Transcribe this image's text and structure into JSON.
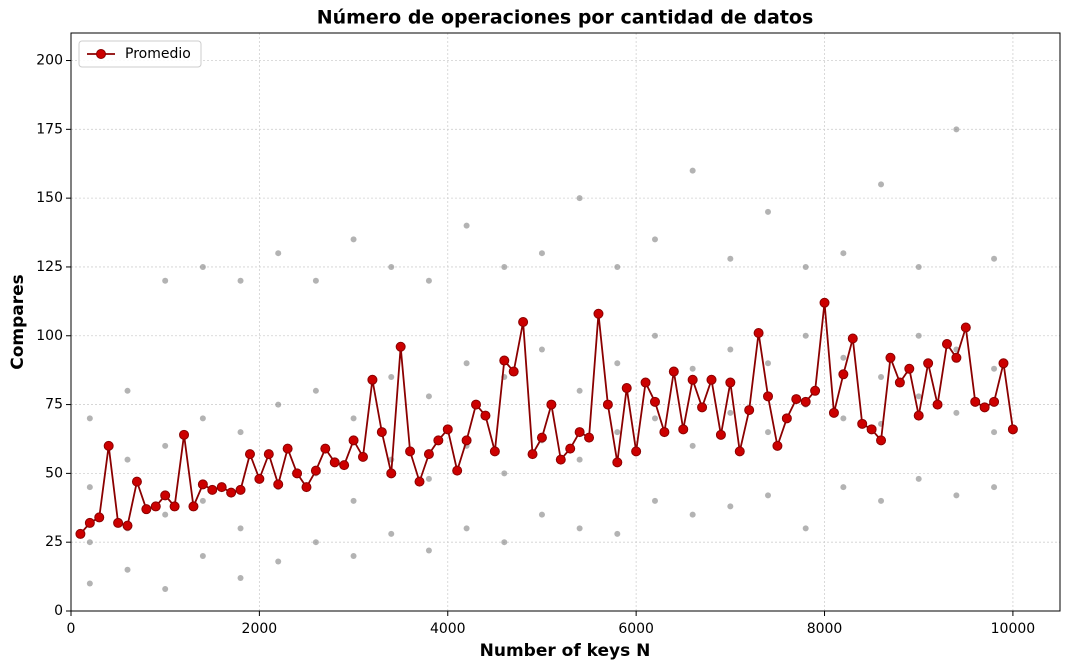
{
  "chart_data": {
    "type": "line",
    "title": "Número de operaciones por cantidad de datos",
    "x_label": "Number of keys N",
    "y_label": "Compares",
    "xlim": [
      0,
      10500
    ],
    "ylim": [
      0,
      210
    ],
    "xticks": [
      0,
      2000,
      4000,
      6000,
      8000,
      10000
    ],
    "yticks": [
      0,
      25,
      50,
      75,
      100,
      125,
      150,
      175,
      200
    ],
    "grid": true,
    "legend": "upper left",
    "series": [
      {
        "type": "scatter",
        "color": "#808080",
        "x": [
          200,
          200,
          200,
          200,
          600,
          600,
          600,
          600,
          1000,
          1000,
          1000,
          1000,
          1400,
          1400,
          1400,
          1400,
          1800,
          1800,
          1800,
          1800,
          2200,
          2200,
          2200,
          2200,
          2600,
          2600,
          2600,
          2600,
          3000,
          3000,
          3000,
          3000,
          3400,
          3400,
          3400,
          3400,
          3800,
          3800,
          3800,
          3800,
          4200,
          4200,
          4200,
          4200,
          4600,
          4600,
          4600,
          4600,
          5000,
          5000,
          5000,
          5000,
          5400,
          5400,
          5400,
          5400,
          5800,
          5800,
          5800,
          5800,
          6200,
          6200,
          6200,
          6200,
          6600,
          6600,
          6600,
          6600,
          7000,
          7000,
          7000,
          7000,
          7400,
          7400,
          7400,
          7400,
          7800,
          7800,
          7800,
          7800,
          8200,
          8200,
          8200,
          8200,
          8600,
          8600,
          8600,
          8600,
          9000,
          9000,
          9000,
          9000,
          9400,
          9400,
          9400,
          9400,
          9800,
          9800,
          9800,
          9800
        ],
        "values": [
          10,
          25,
          45,
          70,
          15,
          30,
          55,
          80,
          8,
          35,
          60,
          120,
          20,
          40,
          70,
          125,
          12,
          30,
          65,
          120,
          18,
          45,
          75,
          130,
          25,
          50,
          80,
          120,
          20,
          40,
          70,
          135,
          28,
          55,
          85,
          125,
          22,
          48,
          78,
          120,
          30,
          60,
          90,
          140,
          25,
          50,
          85,
          125,
          35,
          62,
          95,
          130,
          30,
          55,
          80,
          150,
          28,
          65,
          90,
          125,
          40,
          70,
          100,
          135,
          35,
          60,
          88,
          160,
          38,
          72,
          95,
          128,
          42,
          65,
          90,
          145,
          30,
          75,
          100,
          125,
          45,
          70,
          92,
          130,
          40,
          68,
          85,
          155,
          48,
          78,
          100,
          125,
          42,
          72,
          95,
          175,
          45,
          65,
          88,
          128
        ]
      },
      {
        "name": "Promedio",
        "color": "#cc0000",
        "x": [
          100,
          200,
          300,
          400,
          500,
          600,
          700,
          800,
          900,
          1000,
          1100,
          1200,
          1300,
          1400,
          1500,
          1600,
          1700,
          1800,
          1900,
          2000,
          2100,
          2200,
          2300,
          2400,
          2500,
          2600,
          2700,
          2800,
          2900,
          3000,
          3100,
          3200,
          3300,
          3400,
          3500,
          3600,
          3700,
          3800,
          3900,
          4000,
          4100,
          4200,
          4300,
          4400,
          4500,
          4600,
          4700,
          4800,
          4900,
          5000,
          5100,
          5200,
          5300,
          5400,
          5500,
          5600,
          5700,
          5800,
          5900,
          6000,
          6100,
          6200,
          6300,
          6400,
          6500,
          6600,
          6700,
          6800,
          6900,
          7000,
          7100,
          7200,
          7300,
          7400,
          7500,
          7600,
          7700,
          7800,
          7900,
          8000,
          8100,
          8200,
          8300,
          8400,
          8500,
          8600,
          8700,
          8800,
          8900,
          9000,
          9100,
          9200,
          9300,
          9400,
          9500,
          9600,
          9700,
          9800,
          9900,
          10000
        ],
        "values": [
          28,
          32,
          34,
          60,
          32,
          31,
          47,
          37,
          38,
          42,
          38,
          64,
          38,
          46,
          44,
          45,
          43,
          44,
          57,
          48,
          57,
          46,
          59,
          50,
          45,
          51,
          59,
          54,
          53,
          62,
          56,
          84,
          65,
          50,
          96,
          58,
          47,
          57,
          62,
          66,
          51,
          62,
          75,
          71,
          58,
          91,
          87,
          105,
          57,
          63,
          75,
          55,
          59,
          65,
          63,
          108,
          75,
          54,
          81,
          58,
          83,
          76,
          65,
          87,
          66,
          84,
          74,
          84,
          64,
          83,
          58,
          73,
          101,
          78,
          60,
          70,
          77,
          76,
          80,
          112,
          72,
          86,
          99,
          68,
          66,
          62,
          92,
          83,
          88,
          71,
          90,
          75,
          97,
          92,
          103,
          76,
          74,
          76,
          90,
          66
        ]
      }
    ]
  }
}
